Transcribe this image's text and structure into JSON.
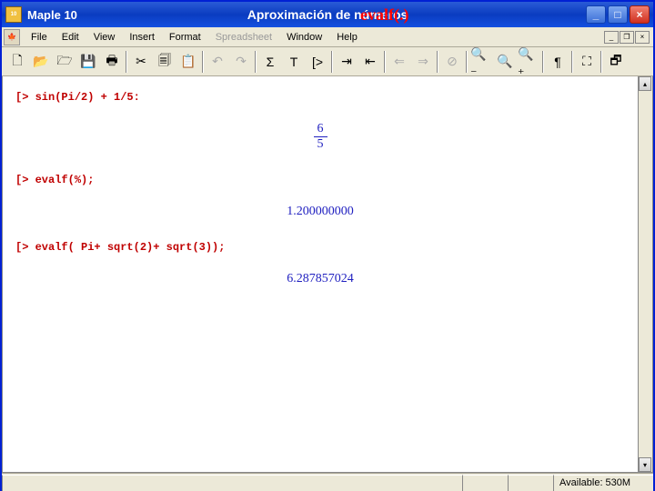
{
  "window": {
    "title": "Maple 10",
    "middle_text": "Aproximación de números",
    "overlay_text": "evalf(.)",
    "icon_label": "10"
  },
  "menu": {
    "items": [
      "File",
      "Edit",
      "View",
      "Insert",
      "Format",
      "Spreadsheet",
      "Window",
      "Help"
    ],
    "disabled_index": 5
  },
  "toolbar": {
    "icons": [
      {
        "name": "new-doc-icon",
        "glyph": "🗋",
        "sep": false,
        "disabled": false
      },
      {
        "name": "open-icon",
        "glyph": "📂",
        "sep": false,
        "disabled": false
      },
      {
        "name": "open-url-icon",
        "glyph": "🗁",
        "sep": false,
        "disabled": false
      },
      {
        "name": "save-icon",
        "glyph": "💾",
        "sep": false,
        "disabled": false
      },
      {
        "name": "print-icon",
        "glyph": "🖶",
        "sep": true,
        "disabled": false
      },
      {
        "name": "cut-icon",
        "glyph": "✂",
        "sep": false,
        "disabled": false
      },
      {
        "name": "copy-icon",
        "glyph": "🗐",
        "sep": false,
        "disabled": false
      },
      {
        "name": "paste-icon",
        "glyph": "📋",
        "sep": true,
        "disabled": false
      },
      {
        "name": "undo-icon",
        "glyph": "↶",
        "sep": false,
        "disabled": true
      },
      {
        "name": "redo-icon",
        "glyph": "↷",
        "sep": true,
        "disabled": true
      },
      {
        "name": "sigma-icon",
        "glyph": "Σ",
        "sep": false,
        "disabled": false
      },
      {
        "name": "text-icon",
        "glyph": "T",
        "sep": false,
        "disabled": false
      },
      {
        "name": "prompt-icon",
        "glyph": "[>",
        "sep": true,
        "disabled": false
      },
      {
        "name": "indent-icon",
        "glyph": "⇥",
        "sep": false,
        "disabled": false
      },
      {
        "name": "outdent-icon",
        "glyph": "⇤",
        "sep": true,
        "disabled": false
      },
      {
        "name": "back-icon",
        "glyph": "⇐",
        "sep": false,
        "disabled": true
      },
      {
        "name": "forward-icon",
        "glyph": "⇒",
        "sep": true,
        "disabled": true
      },
      {
        "name": "stop-icon",
        "glyph": "⊘",
        "sep": true,
        "disabled": true
      },
      {
        "name": "zoom-out-icon",
        "glyph": "🔍₋",
        "sep": false,
        "disabled": false
      },
      {
        "name": "zoom-100-icon",
        "glyph": "🔍",
        "sep": false,
        "disabled": false
      },
      {
        "name": "zoom-in-icon",
        "glyph": "🔍₊",
        "sep": true,
        "disabled": false
      },
      {
        "name": "pilcrow-icon",
        "glyph": "¶",
        "sep": true,
        "disabled": false
      },
      {
        "name": "expand-icon",
        "glyph": "⛶",
        "sep": true,
        "disabled": false
      },
      {
        "name": "restore-icon",
        "glyph": "🗗",
        "sep": false,
        "disabled": false
      }
    ]
  },
  "document": {
    "lines": [
      {
        "type": "prompt",
        "text": "sin(Pi/2) + 1/5:"
      },
      {
        "type": "fraction",
        "num": "6",
        "den": "5"
      },
      {
        "type": "prompt",
        "text": "evalf(%);"
      },
      {
        "type": "output",
        "text": "1.200000000"
      },
      {
        "type": "prompt",
        "text": "evalf( Pi+ sqrt(2)+ sqrt(3));"
      },
      {
        "type": "output",
        "text": "6.287857024"
      }
    ]
  },
  "status": {
    "available": "Available: 530M"
  },
  "colors": {
    "titlebar_grad": [
      "#2a5bd7",
      "#0a3cc0",
      "#1450e0"
    ],
    "prompt_color": "#c00000",
    "output_color": "#2020c0",
    "overlay_color": "#ff0000",
    "border_color": "#0020d4"
  }
}
